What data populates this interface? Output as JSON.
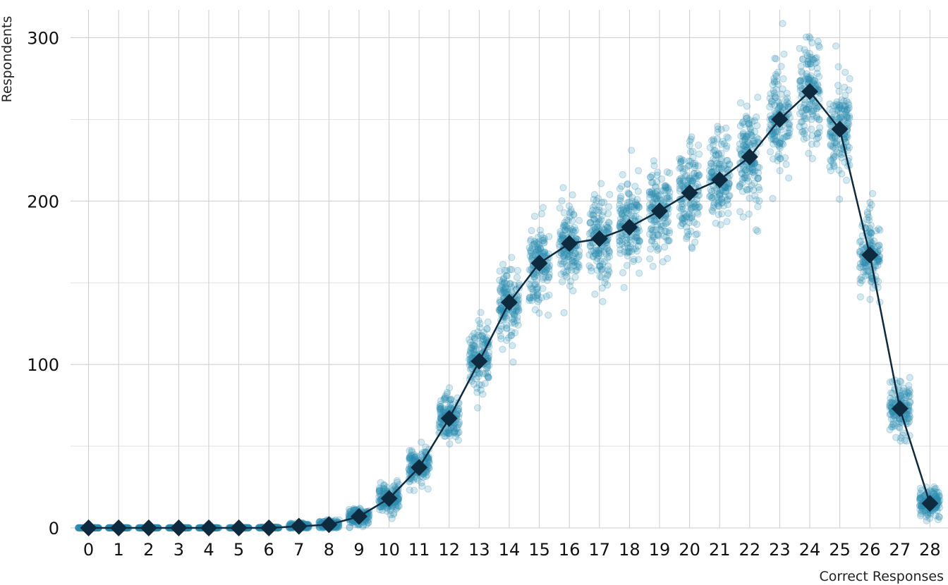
{
  "chart_data": {
    "type": "scatter",
    "xlabel": "Correct Responses",
    "ylabel": "Respondents",
    "categories": [
      "0",
      "1",
      "2",
      "3",
      "4",
      "5",
      "6",
      "7",
      "8",
      "9",
      "10",
      "11",
      "12",
      "13",
      "14",
      "15",
      "16",
      "17",
      "18",
      "19",
      "20",
      "21",
      "22",
      "23",
      "24",
      "25",
      "26",
      "27",
      "28"
    ],
    "xlim": [
      -0.6,
      28.6
    ],
    "ylim": [
      0,
      317
    ],
    "y_ticks": [
      "0",
      "100",
      "200",
      "300"
    ],
    "y_minor_ticks": [
      50,
      150,
      250
    ],
    "grid": true,
    "legend": "none",
    "series": [
      {
        "kind": "mean-line-with-diamond-markers",
        "values": [
          0,
          0,
          0,
          0,
          0,
          0,
          0,
          1,
          2,
          7,
          18,
          37,
          67,
          102,
          138,
          162,
          174,
          177,
          184,
          194,
          205,
          213,
          227,
          250,
          267,
          244,
          167,
          73,
          15
        ]
      },
      {
        "kind": "jittered-replicate-points",
        "spread_sd": [
          0.05,
          0.05,
          0.05,
          0.05,
          0.05,
          0.1,
          0.3,
          0.9,
          1.3,
          2.4,
          4.2,
          5.7,
          7.5,
          9.5,
          11.0,
          12.0,
          12.5,
          12.8,
          13.2,
          13.5,
          13.8,
          14.1,
          14.7,
          15.5,
          16.0,
          15.4,
          12.6,
          8.4,
          3.9
        ]
      }
    ],
    "colors": {
      "points": "#2a8bb0",
      "line_and_markers": "#0e2a3e",
      "grid": "#cccccc"
    }
  }
}
